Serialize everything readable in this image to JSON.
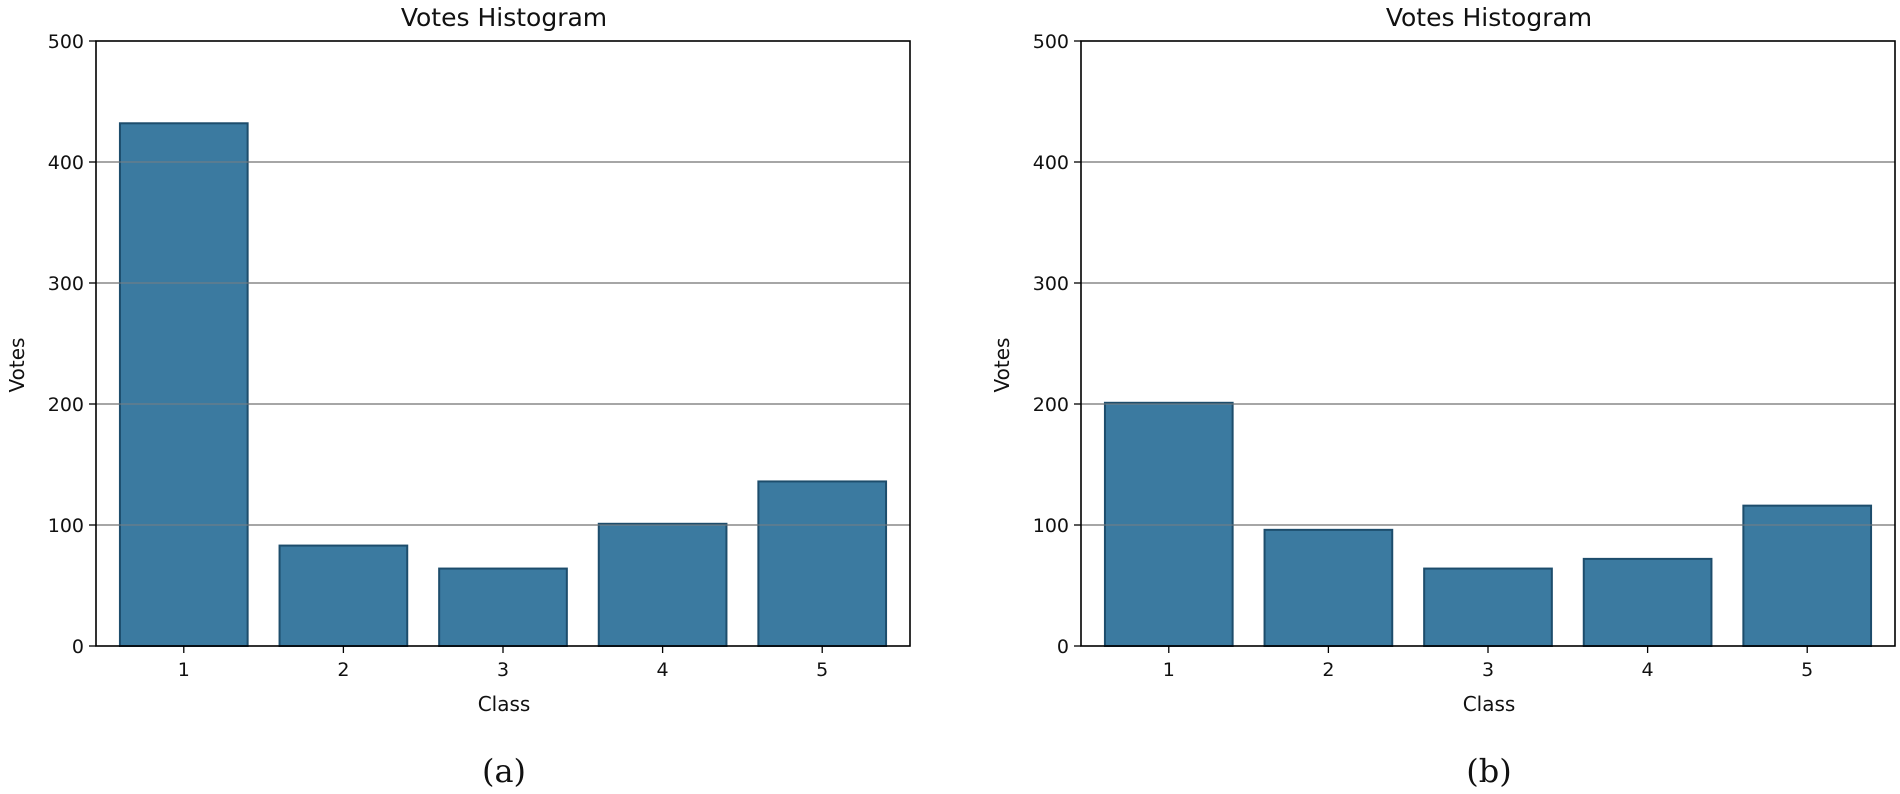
{
  "chart_data": [
    {
      "type": "bar",
      "title": "Votes Histogram",
      "xlabel": "Class",
      "ylabel": "Votes",
      "categories": [
        "1",
        "2",
        "3",
        "4",
        "5"
      ],
      "values": [
        432,
        83,
        64,
        101,
        136
      ],
      "ylim": [
        0,
        500
      ],
      "yticks": [
        0,
        100,
        200,
        300,
        400,
        500
      ],
      "grid": "horizontal",
      "panel_label": "(a)",
      "colors": {
        "bar_fill": "#3b7aa0",
        "bar_edge": "#1d4d6c"
      }
    },
    {
      "type": "bar",
      "title": "Votes Histogram",
      "xlabel": "Class",
      "ylabel": "Votes",
      "categories": [
        "1",
        "2",
        "3",
        "4",
        "5"
      ],
      "values": [
        201,
        96,
        64,
        72,
        116
      ],
      "ylim": [
        0,
        500
      ],
      "yticks": [
        0,
        100,
        200,
        300,
        400,
        500
      ],
      "grid": "horizontal",
      "panel_label": "(b)",
      "colors": {
        "bar_fill": "#3b7aa0",
        "bar_edge": "#1d4d6c"
      }
    }
  ]
}
